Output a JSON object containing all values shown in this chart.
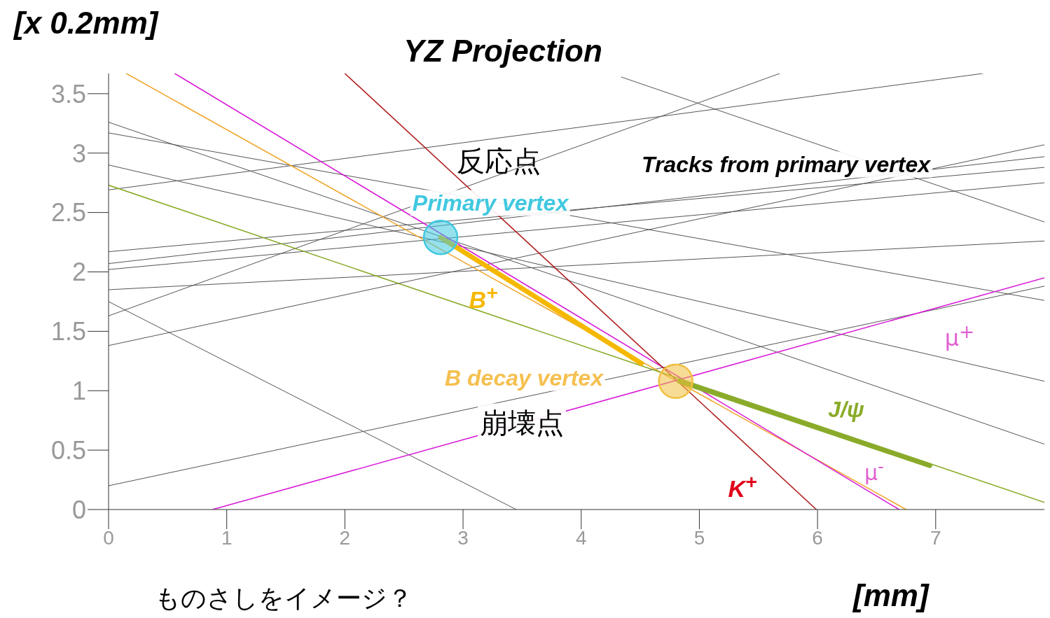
{
  "chart_data": {
    "type": "line",
    "title": "YZ Projection",
    "xlabel": "[mm]",
    "ylabel": "[x 0.2mm]",
    "xlim": [
      0,
      7.92
    ],
    "ylim": [
      0,
      3.67
    ],
    "xticks": [
      0,
      1,
      2,
      3,
      4,
      5,
      6,
      7
    ],
    "yticks": [
      0,
      0.5,
      1,
      1.5,
      2,
      2.5,
      3,
      3.5
    ],
    "grid": false,
    "legend": false,
    "series": [
      {
        "color": "#555555",
        "x": [
          0,
          7.92
        ],
        "values": [
          3.26,
          0.55
        ]
      },
      {
        "color": "#555555",
        "x": [
          0,
          7.92
        ],
        "values": [
          3.17,
          1.76
        ]
      },
      {
        "color": "#555555",
        "x": [
          0,
          7.92
        ],
        "values": [
          2.9,
          1.08
        ]
      },
      {
        "color": "#555555",
        "x": [
          0,
          3.45
        ],
        "values": [
          1.75,
          0
        ]
      },
      {
        "color": "#555555",
        "x": [
          0,
          7.4
        ],
        "values": [
          2.69,
          3.67
        ]
      },
      {
        "color": "#555555",
        "x": [
          0,
          7.92
        ],
        "values": [
          2.17,
          2.88
        ]
      },
      {
        "color": "#555555",
        "x": [
          0,
          7.92
        ],
        "values": [
          2.07,
          2.97
        ]
      },
      {
        "color": "#555555",
        "x": [
          0,
          7.92
        ],
        "values": [
          2.02,
          2.75
        ]
      },
      {
        "color": "#555555",
        "x": [
          0,
          7.92
        ],
        "values": [
          1.85,
          2.26
        ]
      },
      {
        "color": "#555555",
        "x": [
          0,
          5.68
        ],
        "values": [
          1.63,
          3.67
        ]
      },
      {
        "color": "#555555",
        "x": [
          0,
          7.92
        ],
        "values": [
          1.38,
          3.07
        ]
      },
      {
        "color": "#555555",
        "x": [
          0,
          7.92
        ],
        "values": [
          0.2,
          1.88
        ]
      },
      {
        "color": "#555555",
        "x": [
          4.34,
          7.92
        ],
        "values": [
          3.64,
          2.42
        ]
      },
      {
        "color": "#f0a830",
        "x": [
          0.15,
          6.75
        ],
        "values": [
          3.67,
          0
        ]
      },
      {
        "color": "#d81ed8",
        "x": [
          0.56,
          6.69
        ],
        "values": [
          3.67,
          0
        ]
      },
      {
        "color": "#b22222",
        "x": [
          2.0,
          5.99
        ],
        "values": [
          3.67,
          0
        ]
      },
      {
        "color": "#d81ed8",
        "x": [
          0.88,
          7.92
        ],
        "values": [
          0,
          1.95
        ]
      },
      {
        "color": "#8aab2a",
        "x": [
          0,
          7.92
        ],
        "values": [
          2.73,
          0.06
        ]
      },
      {
        "color": "#f5b800",
        "x": [
          2.81,
          4.51
        ],
        "values": [
          2.29,
          1.23
        ]
      },
      {
        "color": "#8aab2a",
        "x": [
          4.83,
          6.95
        ],
        "values": [
          1.08,
          0.37
        ]
      },
      {
        "type": "scatter",
        "colors": [
          "#40c8e0",
          "#f0c040"
        ],
        "x": [
          2.81,
          4.8
        ],
        "values": [
          2.29,
          1.08
        ]
      }
    ],
    "annotations": [
      "反応点",
      "Primary vertex",
      "B$^{+}$",
      "B decay vertex",
      "崩壊点",
      "Tracks from primary vertex",
      "μ$^{+}$",
      "J/ψ",
      "μ$^{-}$",
      "K$^{+}$",
      "ものさしをイメージ？"
    ]
  }
}
